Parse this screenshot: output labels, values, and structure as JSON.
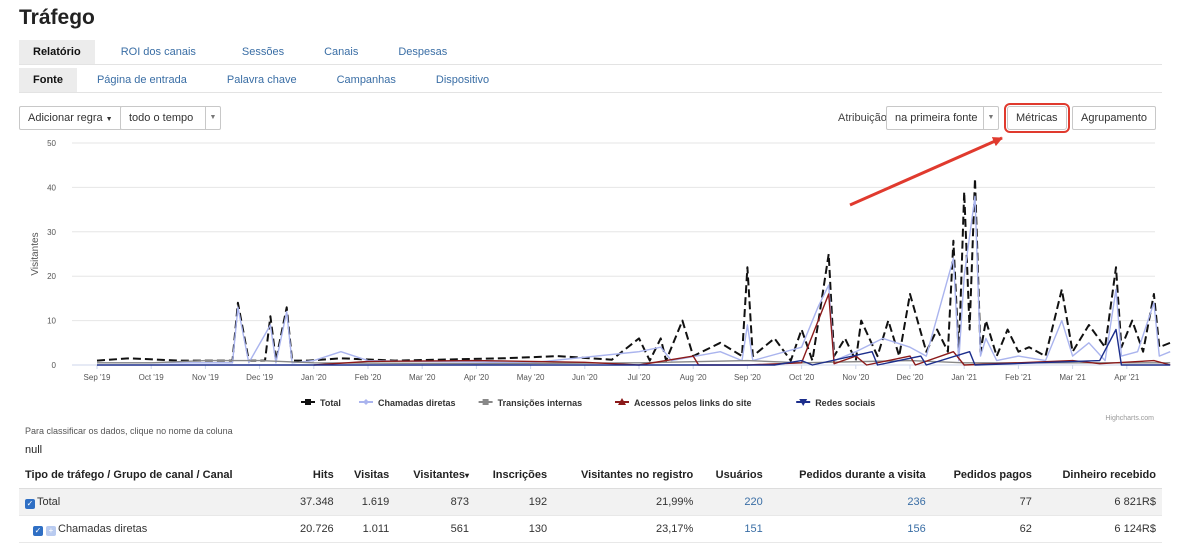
{
  "page_title": "Tráfego",
  "tabs_primary": [
    "Relatório",
    "ROI dos canais",
    "Sessões",
    "Canais",
    "Despesas"
  ],
  "tabs_secondary": [
    "Fonte",
    "Página de entrada",
    "Palavra chave",
    "Campanhas",
    "Dispositivo"
  ],
  "toolbar": {
    "add_rule": "Adicionar regra",
    "period": "todo o tempo",
    "attribution_label": "Atribuição",
    "attribution_value": "na primeira fonte",
    "metrics": "Métricas",
    "grouping": "Agrupamento"
  },
  "colors": {
    "annotation_red": "#e03a2e",
    "link_blue": "#3a6ea5",
    "checkbox_blue": "#2f6fc4"
  },
  "chart_data": {
    "type": "line",
    "ylabel": "Visitantes",
    "ylim": [
      0,
      50
    ],
    "yticks": [
      "0",
      "10",
      "20",
      "30",
      "40",
      "50"
    ],
    "xticks": [
      "Sep '19",
      "Oct '19",
      "Nov '19",
      "Dec '19",
      "Jan '20",
      "Feb '20",
      "Mar '20",
      "Apr '20",
      "May '20",
      "Jun '20",
      "Jul '20",
      "Aug '20",
      "Sep '20",
      "Oct '20",
      "Nov '20",
      "Dec '20",
      "Jan '21",
      "Feb '21",
      "Mar '21",
      "Apr '21"
    ],
    "credit": "Highcharts.com",
    "legend_position": "bottom",
    "series": [
      {
        "name": "Total",
        "color": "#111111",
        "dash": "8,4",
        "points": [
          [
            0,
            1
          ],
          [
            0.6,
            1.5
          ],
          [
            1.5,
            1
          ],
          [
            2.5,
            1
          ],
          [
            2.6,
            14
          ],
          [
            2.8,
            1
          ],
          [
            3.1,
            1
          ],
          [
            3.2,
            11
          ],
          [
            3.3,
            1
          ],
          [
            3.5,
            13
          ],
          [
            3.6,
            1
          ],
          [
            3.9,
            1
          ],
          [
            4.5,
            1.5
          ],
          [
            5.5,
            1
          ],
          [
            7.5,
            1.5
          ],
          [
            8.5,
            2
          ],
          [
            9.5,
            1.2
          ],
          [
            10,
            6
          ],
          [
            10.2,
            1
          ],
          [
            10.4,
            6
          ],
          [
            10.5,
            1
          ],
          [
            10.8,
            10
          ],
          [
            11,
            2
          ],
          [
            11.5,
            5
          ],
          [
            11.9,
            2
          ],
          [
            12,
            22
          ],
          [
            12.1,
            2
          ],
          [
            12.5,
            6
          ],
          [
            12.8,
            1
          ],
          [
            13,
            8
          ],
          [
            13.2,
            1
          ],
          [
            13.5,
            25
          ],
          [
            13.6,
            2
          ],
          [
            13.8,
            6
          ],
          [
            14,
            1
          ],
          [
            14.1,
            10
          ],
          [
            14.4,
            2
          ],
          [
            14.6,
            10
          ],
          [
            14.8,
            2
          ],
          [
            15,
            16
          ],
          [
            15.3,
            3
          ],
          [
            15.5,
            8
          ],
          [
            15.7,
            3
          ],
          [
            15.8,
            28
          ],
          [
            15.9,
            2
          ],
          [
            16,
            39
          ],
          [
            16.1,
            8
          ],
          [
            16.2,
            42
          ],
          [
            16.3,
            3
          ],
          [
            16.4,
            10
          ],
          [
            16.6,
            2
          ],
          [
            16.8,
            8
          ],
          [
            17,
            3
          ],
          [
            17.2,
            4
          ],
          [
            17.5,
            2
          ],
          [
            17.8,
            17
          ],
          [
            18,
            3
          ],
          [
            18.3,
            9
          ],
          [
            18.6,
            4
          ],
          [
            18.8,
            22
          ],
          [
            18.9,
            4
          ],
          [
            19.1,
            10
          ],
          [
            19.3,
            3
          ],
          [
            19.5,
            16
          ],
          [
            19.6,
            4
          ],
          [
            19.8,
            5
          ]
        ]
      },
      {
        "name": "Chamadas diretas",
        "color": "#aab4ee",
        "dash": "",
        "points": [
          [
            0,
            0.5
          ],
          [
            1.5,
            0.5
          ],
          [
            2.5,
            0.5
          ],
          [
            2.6,
            13
          ],
          [
            2.8,
            0.5
          ],
          [
            3.2,
            9
          ],
          [
            3.3,
            0.5
          ],
          [
            3.5,
            12
          ],
          [
            3.6,
            0.5
          ],
          [
            4,
            1
          ],
          [
            4.5,
            3
          ],
          [
            5,
            1
          ],
          [
            8,
            0.5
          ],
          [
            10,
            3
          ],
          [
            10.4,
            4
          ],
          [
            10.6,
            1
          ],
          [
            11.5,
            3
          ],
          [
            11.9,
            1
          ],
          [
            12,
            9
          ],
          [
            12.1,
            1
          ],
          [
            13,
            4
          ],
          [
            13.3,
            13
          ],
          [
            13.5,
            18
          ],
          [
            13.6,
            1
          ],
          [
            14,
            3
          ],
          [
            14.5,
            6
          ],
          [
            15,
            4
          ],
          [
            15.3,
            2
          ],
          [
            15.8,
            24
          ],
          [
            15.9,
            1
          ],
          [
            16,
            20
          ],
          [
            16.2,
            38
          ],
          [
            16.3,
            2
          ],
          [
            16.4,
            6
          ],
          [
            16.6,
            1
          ],
          [
            17,
            2
          ],
          [
            17.5,
            1
          ],
          [
            17.8,
            10
          ],
          [
            18,
            2
          ],
          [
            18.3,
            5
          ],
          [
            18.6,
            1
          ],
          [
            18.8,
            17
          ],
          [
            18.9,
            2
          ],
          [
            19.2,
            3
          ],
          [
            19.5,
            14
          ],
          [
            19.6,
            2
          ],
          [
            19.8,
            3
          ]
        ]
      },
      {
        "name": "Transições internas",
        "color": "#888888",
        "dash": "",
        "points": [
          [
            0,
            0.5
          ],
          [
            1,
            0.5
          ],
          [
            2,
            1
          ],
          [
            3,
            1
          ],
          [
            4,
            0.5
          ],
          [
            7,
            0.3
          ],
          [
            10,
            0.5
          ],
          [
            12,
            1
          ],
          [
            13,
            0.5
          ],
          [
            15,
            1
          ],
          [
            16,
            0.5
          ],
          [
            17,
            0.5
          ],
          [
            19,
            0.5
          ],
          [
            19.8,
            0.5
          ]
        ]
      },
      {
        "name": "Acessos pelos links do site",
        "color": "#8b1a1a",
        "dash": "",
        "points": [
          [
            4,
            0
          ],
          [
            5,
            0.8
          ],
          [
            7,
            1
          ],
          [
            9,
            0.6
          ],
          [
            10,
            0
          ],
          [
            11,
            2
          ],
          [
            11.1,
            0
          ],
          [
            12,
            0
          ],
          [
            13,
            0.5
          ],
          [
            13.5,
            16
          ],
          [
            13.6,
            0.3
          ],
          [
            14,
            2
          ],
          [
            14.2,
            0
          ],
          [
            15,
            2
          ],
          [
            15.1,
            0
          ],
          [
            15.8,
            3
          ],
          [
            16,
            0
          ],
          [
            17,
            0.5
          ],
          [
            18,
            1
          ],
          [
            18.5,
            0.3
          ],
          [
            19.5,
            1
          ],
          [
            19.8,
            0
          ]
        ]
      },
      {
        "name": "Redes sociais",
        "color": "#1c2e8c",
        "dash": "",
        "points": [
          [
            0,
            0
          ],
          [
            12.5,
            0
          ],
          [
            13,
            1
          ],
          [
            13.2,
            0
          ],
          [
            14.3,
            3
          ],
          [
            14.4,
            0
          ],
          [
            15.2,
            2
          ],
          [
            15.3,
            0
          ],
          [
            16.1,
            3
          ],
          [
            16.2,
            0
          ],
          [
            18.5,
            1
          ],
          [
            18.8,
            8
          ],
          [
            18.9,
            0
          ],
          [
            19.8,
            0
          ]
        ]
      }
    ]
  },
  "sort_hint": "Para classificar os dados, clique no nome da coluna",
  "null_text": "null",
  "table": {
    "headers": [
      "Tipo de tráfego / Grupo de canal / Canal",
      "Hits",
      "Visitas",
      "Visitantes",
      "Inscrições",
      "Visitantes no registro",
      "Usuários",
      "Pedidos durante a visita",
      "Pedidos pagos",
      "Dinheiro recebido"
    ],
    "sorted_marker": "▾",
    "rows": [
      {
        "name": "Total",
        "values": [
          "37.348",
          "1.619",
          "873",
          "192",
          "21,99%",
          "220",
          "236",
          "77",
          "6 821R$"
        ]
      },
      {
        "name": "Chamadas diretas",
        "values": [
          "20.726",
          "1.011",
          "561",
          "130",
          "23,17%",
          "151",
          "156",
          "62",
          "6 124R$"
        ]
      }
    ]
  }
}
